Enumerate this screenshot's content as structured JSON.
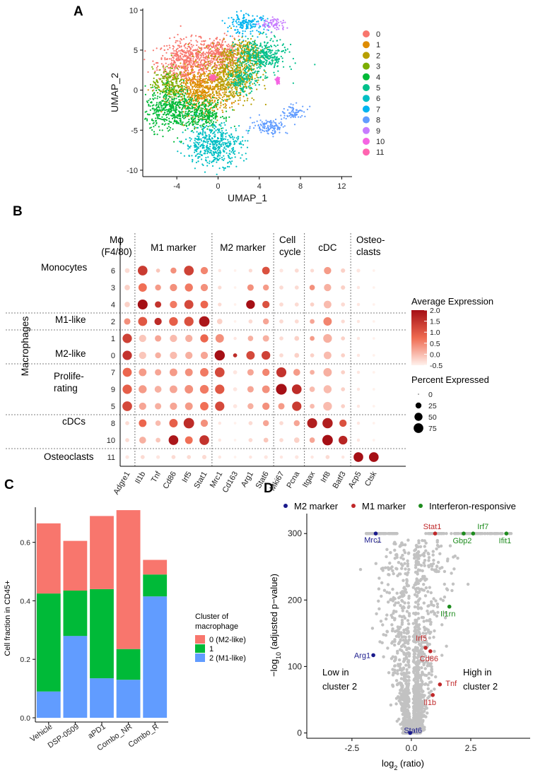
{
  "figure": {
    "panel_labels": [
      "A",
      "B",
      "C",
      "D"
    ]
  },
  "chart_data": [
    {
      "id": "umap",
      "type": "scatter",
      "xlabel": "UMAP_1",
      "ylabel": "UMAP_2",
      "xlim": [
        -7.3,
        13
      ],
      "ylim": [
        -10.8,
        10.2
      ],
      "xticks": [
        -4,
        0,
        4,
        8,
        12
      ],
      "yticks": [
        -10,
        -5,
        0,
        5,
        10
      ],
      "xtick_labels": [
        "-4",
        "0",
        "4",
        "8",
        "12"
      ],
      "ytick_labels": [
        "-10",
        "-5",
        "0",
        "5",
        "10"
      ],
      "legend": [
        {
          "label": "0",
          "color": "#F8766D"
        },
        {
          "label": "1",
          "color": "#DE8C00"
        },
        {
          "label": "2",
          "color": "#B79F00"
        },
        {
          "label": "3",
          "color": "#7CAE00"
        },
        {
          "label": "4",
          "color": "#00BA38"
        },
        {
          "label": "5",
          "color": "#00C08B"
        },
        {
          "label": "6",
          "color": "#00BFC4"
        },
        {
          "label": "7",
          "color": "#00B4F0"
        },
        {
          "label": "8",
          "color": "#619CFF"
        },
        {
          "label": "9",
          "color": "#C77CFF"
        },
        {
          "label": "10",
          "color": "#F564E3"
        },
        {
          "label": "11",
          "color": "#FF64B0"
        }
      ],
      "clusters": [
        {
          "label": "0",
          "blobs": [
            [
              -3.0,
              3.5,
              2.6,
              2.5
            ],
            [
              0.0,
              4.5,
              1.8,
              2.0
            ]
          ]
        },
        {
          "label": "1",
          "blobs": [
            [
              -1.6,
              -0.2,
              2.5,
              2.6
            ]
          ]
        },
        {
          "label": "2",
          "blobs": [
            [
              1.2,
              2.0,
              2.2,
              3.2
            ],
            [
              2.8,
              4.6,
              1.4,
              1.6
            ]
          ]
        },
        {
          "label": "3",
          "blobs": [
            [
              -4.8,
              0.8,
              1.4,
              1.8
            ]
          ]
        },
        {
          "label": "4",
          "blobs": [
            [
              -4.4,
              -2.4,
              2.4,
              2.4
            ],
            [
              -1.2,
              -3.0,
              1.6,
              1.6
            ]
          ]
        },
        {
          "label": "5",
          "blobs": [
            [
              4.2,
              4.2,
              2.2,
              2.0
            ],
            [
              2.4,
              1.2,
              1.2,
              1.4
            ]
          ]
        },
        {
          "label": "6",
          "blobs": [
            [
              -0.4,
              -6.8,
              2.5,
              2.3
            ]
          ]
        },
        {
          "label": "7",
          "blobs": [
            [
              2.8,
              8.2,
              1.8,
              1.1
            ]
          ]
        },
        {
          "label": "8",
          "blobs": [
            [
              5.0,
              -4.5,
              1.6,
              0.9
            ],
            [
              7.4,
              -2.8,
              1.1,
              0.8
            ]
          ]
        },
        {
          "label": "9",
          "blobs": [
            [
              5.4,
              8.2,
              1.1,
              0.8
            ]
          ]
        },
        {
          "label": "10",
          "blobs": [
            [
              5.8,
              1.2,
              0.15,
              0.3
            ]
          ]
        },
        {
          "label": "11",
          "blobs": [
            [
              -0.5,
              1.6,
              0.3,
              0.3
            ]
          ]
        }
      ]
    },
    {
      "id": "dotplot",
      "type": "scatter",
      "subtype": "dot-plot",
      "gene_groups": [
        {
          "label_lines": [
            "Mφ",
            "(F4/80)"
          ],
          "genes": [
            "Adgre1"
          ]
        },
        {
          "label_lines": [
            "M1 marker"
          ],
          "genes": [
            "Il1b",
            "Tnf",
            "Cd86",
            "Irf5",
            "Stat1"
          ]
        },
        {
          "label_lines": [
            "M2 marker"
          ],
          "genes": [
            "Mrc1",
            "Cd163",
            "Arg1",
            "Stat6"
          ]
        },
        {
          "label_lines": [
            "Cell",
            "cycle"
          ],
          "genes": [
            "Mki67",
            "Pcna"
          ]
        },
        {
          "label_lines": [
            "cDC"
          ],
          "genes": [
            "Itgax",
            "Irf8",
            "Batf3"
          ]
        },
        {
          "label_lines": [
            "Osteo-",
            "clasts"
          ],
          "genes": [
            "Acp5",
            "Ctsk"
          ]
        }
      ],
      "genes": [
        "Adgre1",
        "Il1b",
        "Tnf",
        "Cd86",
        "Irf5",
        "Stat1",
        "Mrc1",
        "Cd163",
        "Arg1",
        "Stat6",
        "Mki67",
        "Pcna",
        "Itgax",
        "Irf8",
        "Batf3",
        "Acp5",
        "Ctsk"
      ],
      "rows": [
        {
          "cluster": "6",
          "pct": [
            15,
            75,
            10,
            25,
            75,
            40,
            5,
            3,
            8,
            45,
            8,
            10,
            8,
            40,
            12,
            8,
            3
          ],
          "avg": [
            -0.3,
            1.4,
            -0.1,
            0.4,
            1.3,
            0.5,
            -0.4,
            -0.5,
            -0.3,
            1.1,
            -0.4,
            -0.3,
            -0.3,
            0.3,
            -0.2,
            -0.4,
            -0.5
          ]
        },
        {
          "cluster": "3",
          "pct": [
            20,
            55,
            25,
            40,
            50,
            40,
            8,
            3,
            30,
            25,
            10,
            10,
            20,
            40,
            12,
            5,
            3
          ],
          "avg": [
            -0.2,
            0.7,
            0.3,
            0.4,
            0.6,
            0.4,
            -0.3,
            -0.5,
            0.4,
            0.3,
            -0.3,
            -0.3,
            0.4,
            0.1,
            -0.2,
            -0.4,
            -0.5
          ]
        },
        {
          "cluster": "4",
          "pct": [
            20,
            80,
            30,
            40,
            65,
            45,
            8,
            3,
            60,
            40,
            10,
            10,
            10,
            45,
            10,
            5,
            3
          ],
          "avg": [
            -0.2,
            2.0,
            1.5,
            0.6,
            1.2,
            0.8,
            -0.3,
            -0.5,
            2.0,
            1.1,
            -0.3,
            -0.3,
            -0.2,
            0.0,
            -0.3,
            -0.4,
            -0.5
          ]
        },
        {
          "cluster": "2",
          "pct": [
            30,
            65,
            40,
            60,
            70,
            90,
            20,
            3,
            10,
            25,
            10,
            10,
            15,
            55,
            8,
            5,
            3
          ],
          "avg": [
            0.4,
            1.0,
            1.6,
            0.9,
            1.1,
            1.9,
            -0.2,
            -0.5,
            -0.3,
            0.2,
            -0.3,
            -0.3,
            0.2,
            0.5,
            -0.3,
            -0.4,
            -0.5
          ]
        },
        {
          "cluster": "1",
          "pct": [
            70,
            40,
            30,
            40,
            40,
            50,
            55,
            5,
            20,
            30,
            10,
            15,
            15,
            60,
            10,
            5,
            3
          ],
          "avg": [
            1.3,
            -0.1,
            0.2,
            0.0,
            0.1,
            0.8,
            0.4,
            -0.4,
            0.1,
            0.1,
            -0.3,
            -0.2,
            0.3,
            0.1,
            -0.2,
            -0.4,
            -0.5
          ]
        },
        {
          "cluster": "0",
          "pct": [
            70,
            40,
            25,
            40,
            40,
            40,
            85,
            10,
            55,
            60,
            10,
            15,
            10,
            45,
            10,
            5,
            3
          ],
          "avg": [
            1.5,
            -0.1,
            0.1,
            0.0,
            0.1,
            0.2,
            2.0,
            1.6,
            1.2,
            1.3,
            -0.3,
            -0.2,
            -0.2,
            0.0,
            -0.2,
            -0.4,
            -0.5
          ]
        },
        {
          "cluster": "7",
          "pct": [
            65,
            45,
            30,
            45,
            45,
            55,
            75,
            10,
            30,
            40,
            80,
            35,
            15,
            55,
            10,
            5,
            3
          ],
          "avg": [
            0.8,
            0.3,
            0.2,
            0.3,
            0.4,
            0.6,
            1.2,
            -0.4,
            0.2,
            0.5,
            1.5,
            0.3,
            0.1,
            0.1,
            -0.2,
            -0.4,
            -0.5
          ]
        },
        {
          "cluster": "9",
          "pct": [
            70,
            50,
            35,
            45,
            55,
            60,
            70,
            10,
            30,
            45,
            95,
            75,
            20,
            50,
            10,
            5,
            3
          ],
          "avg": [
            0.9,
            0.3,
            0.1,
            0.2,
            0.4,
            0.6,
            1.0,
            -0.4,
            0.2,
            0.4,
            2.0,
            1.6,
            0.0,
            0.0,
            -0.2,
            -0.4,
            -0.5
          ]
        },
        {
          "cluster": "5",
          "pct": [
            75,
            40,
            30,
            40,
            45,
            55,
            70,
            10,
            25,
            40,
            30,
            70,
            15,
            60,
            10,
            5,
            3
          ],
          "avg": [
            1.2,
            0.2,
            0.1,
            0.2,
            0.3,
            0.7,
            1.2,
            -0.4,
            0.1,
            0.4,
            0.3,
            1.4,
            0.0,
            0.0,
            -0.2,
            -0.4,
            -0.5
          ]
        },
        {
          "cluster": "8",
          "pct": [
            10,
            45,
            20,
            55,
            90,
            40,
            5,
            3,
            10,
            25,
            10,
            25,
            80,
            85,
            40,
            5,
            3
          ],
          "avg": [
            -0.3,
            0.8,
            0.0,
            0.9,
            1.6,
            0.4,
            -0.4,
            -0.5,
            -0.3,
            0.2,
            -0.3,
            0.2,
            1.8,
            1.8,
            1.1,
            -0.4,
            -0.5
          ]
        },
        {
          "cluster": "10",
          "pct": [
            10,
            35,
            15,
            75,
            45,
            75,
            5,
            3,
            10,
            15,
            10,
            20,
            20,
            90,
            60,
            5,
            3
          ],
          "avg": [
            -0.3,
            0.1,
            -0.1,
            1.9,
            0.7,
            1.5,
            -0.4,
            -0.5,
            -0.3,
            -0.1,
            -0.3,
            -0.2,
            0.2,
            2.0,
            1.7,
            -0.4,
            -0.5
          ]
        },
        {
          "cluster": "11",
          "pct": [
            8,
            10,
            8,
            10,
            10,
            12,
            5,
            3,
            5,
            8,
            5,
            8,
            5,
            10,
            5,
            75,
            75
          ],
          "avg": [
            -0.4,
            -0.3,
            -0.4,
            -0.3,
            -0.3,
            -0.3,
            -0.4,
            -0.5,
            -0.4,
            -0.4,
            -0.4,
            -0.4,
            -0.4,
            -0.3,
            -0.4,
            2.0,
            2.0
          ]
        }
      ],
      "row_groups": [
        {
          "label_lines": [
            "Monocytes"
          ],
          "clusters": [
            "6",
            "3",
            "4"
          ]
        },
        {
          "label_lines": [
            "M1-like"
          ],
          "clusters": [
            "2"
          ]
        },
        {
          "label_lines": [
            "M2-like"
          ],
          "clusters": [
            "1",
            "0"
          ]
        },
        {
          "label_lines": [
            "Prolife-",
            "rating"
          ],
          "clusters": [
            "7",
            "9",
            "5"
          ]
        },
        {
          "label_lines": [
            "cDCs"
          ],
          "clusters": [
            "8",
            "10"
          ]
        },
        {
          "label_lines": [
            "Osteoclasts"
          ],
          "clusters": [
            "11"
          ]
        }
      ],
      "super_group": "Macrophages",
      "color_legend": {
        "title": "Average Expression",
        "min": -0.5,
        "max": 2.0,
        "ticks": [
          "2.0",
          "1.5",
          "1.0",
          "0.5",
          "0.0",
          "-0.5"
        ],
        "low_color": "#FFF1EC",
        "high_color": "#A50F15"
      },
      "size_legend": {
        "title": "Percent Expressed",
        "values": [
          0,
          25,
          50,
          75
        ],
        "labels": [
          "0",
          "25",
          "50",
          "75"
        ]
      }
    },
    {
      "id": "stacked-bar",
      "type": "bar",
      "stacked": true,
      "categories": [
        "Vehicle",
        "DSP-0509",
        "aPD1",
        "Combo_NR",
        "Combo_R"
      ],
      "series": [
        {
          "name": "2 (M1-like)",
          "color": "#619CFF",
          "values": [
            0.09,
            0.28,
            0.135,
            0.13,
            0.415
          ]
        },
        {
          "name": "1",
          "color": "#00BA38",
          "values": [
            0.335,
            0.155,
            0.305,
            0.105,
            0.075
          ]
        },
        {
          "name": "0 (M2-like)",
          "color": "#F8766D",
          "values": [
            0.24,
            0.17,
            0.25,
            0.475,
            0.05
          ]
        }
      ],
      "ylabel": "Cell fraction in CD45+",
      "ylim": [
        0,
        0.72
      ],
      "yticks": [
        0.0,
        0.2,
        0.4,
        0.6
      ],
      "ytick_labels": [
        "0.0",
        "0.2",
        "0.4",
        "0.6"
      ],
      "legend_title_lines": [
        "Cluster of",
        "macrophage"
      ],
      "legend_labels": [
        "0 (M2-like)",
        "1",
        "2 (M1-like)"
      ]
    },
    {
      "id": "volcano",
      "type": "scatter",
      "xlabel_main": "log",
      "xlabel_sub": "2",
      "xlabel_rest": " (ratio)",
      "ylabel_prefix": "−log",
      "ylabel_sub": "10",
      "ylabel_rest": " (adjusted p−value)",
      "xlim": [
        -4.4,
        5.0
      ],
      "ylim": [
        -8,
        330
      ],
      "xticks": [
        -2.5,
        0.0,
        2.5
      ],
      "xtick_labels": [
        "-2.5",
        "0.0",
        "2.5"
      ],
      "yticks": [
        0,
        100,
        200,
        300
      ],
      "ytick_labels": [
        "0",
        "100",
        "200",
        "300"
      ],
      "legend": [
        {
          "label": "M2 marker",
          "color": "#1A1A8C"
        },
        {
          "label": "M1 marker",
          "color": "#C0282A"
        },
        {
          "label": "Interferon-responsive",
          "color": "#1E8C1E"
        }
      ],
      "annotations": [
        "Low in cluster 2",
        "High in cluster 2"
      ],
      "annotation_lines": {
        "low": [
          "Low in",
          "cluster 2"
        ],
        "high": [
          "High in",
          "cluster 2"
        ]
      },
      "highlighted": [
        {
          "gene": "Mrc1",
          "x": -1.5,
          "y": 300,
          "category": "M2 marker"
        },
        {
          "gene": "Arg1",
          "x": -1.6,
          "y": 117,
          "category": "M2 marker"
        },
        {
          "gene": "Stat6",
          "x": -0.05,
          "y": 0,
          "category": "M2 marker"
        },
        {
          "gene": "Stat1",
          "x": 1.0,
          "y": 300,
          "category": "M1 marker"
        },
        {
          "gene": "Irf5",
          "x": 0.6,
          "y": 128,
          "category": "M1 marker"
        },
        {
          "gene": "Cd86",
          "x": 0.8,
          "y": 123,
          "category": "M1 marker"
        },
        {
          "gene": "Tnf",
          "x": 1.2,
          "y": 73,
          "category": "M1 marker"
        },
        {
          "gene": "Il1b",
          "x": 0.9,
          "y": 57,
          "category": "M1 marker"
        },
        {
          "gene": "Irf7",
          "x": 2.6,
          "y": 300,
          "category": "Interferon-responsive"
        },
        {
          "gene": "Gbp2",
          "x": 2.2,
          "y": 300,
          "category": "Interferon-responsive"
        },
        {
          "gene": "Ifit1",
          "x": 4.0,
          "y": 300,
          "category": "Interferon-responsive"
        },
        {
          "gene": "Il1rn",
          "x": 1.6,
          "y": 190,
          "category": "Interferon-responsive"
        }
      ],
      "background_points_color": "#C2C2C2"
    }
  ]
}
